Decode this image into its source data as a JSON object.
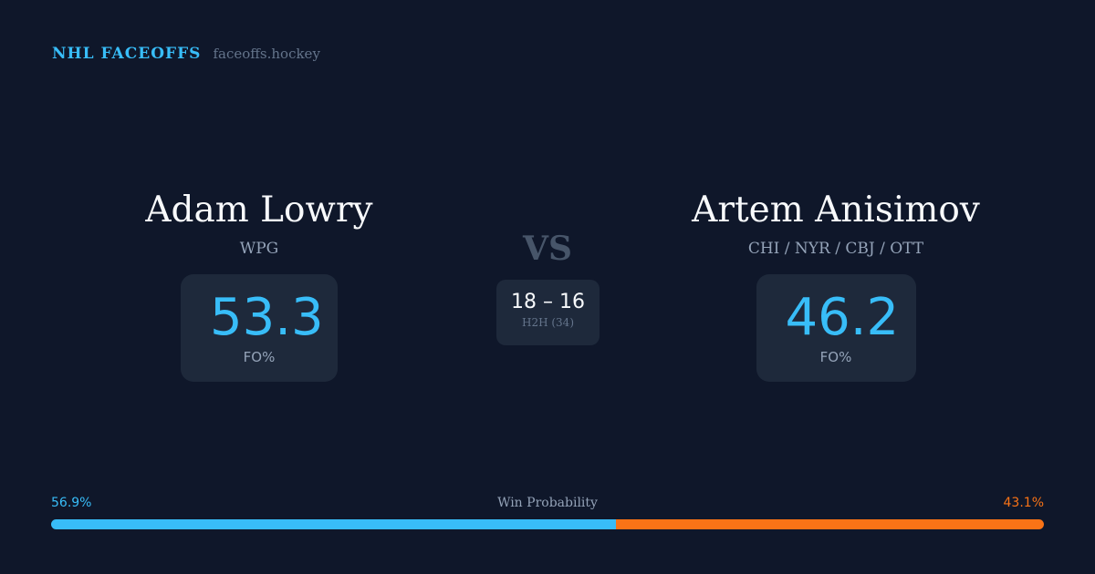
{
  "brand": {
    "title": "NHL FACEOFFS",
    "url": "faceoffs.hockey"
  },
  "player1": {
    "name": "Adam Lowry",
    "team": "WPG",
    "fo_pct": "53.3",
    "fo_label": "FO%"
  },
  "player2": {
    "name": "Artem Anisimov",
    "team": "CHI / NYR / CBJ / OTT",
    "fo_pct": "46.2",
    "fo_label": "FO%"
  },
  "vs": "VS",
  "h2h": {
    "score": "18 – 16",
    "label": "H2H (34)"
  },
  "win_probability": {
    "label": "Win Probability",
    "left": "56.9%",
    "right": "43.1%",
    "left_value": 56.9,
    "right_value": 43.1,
    "left_color": "#38bdf8",
    "right_color": "#f97316"
  }
}
